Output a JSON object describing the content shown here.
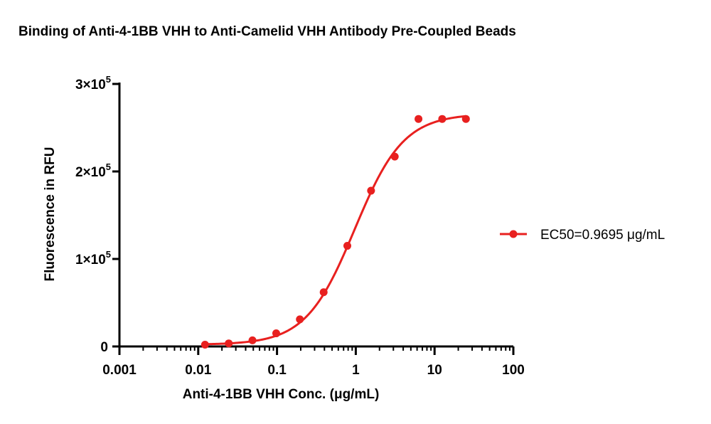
{
  "chart_data": {
    "type": "scatter",
    "title": "Binding of  Anti-4-1BB VHH  to Anti-Camelid VHH Antibody Pre-Coupled Beads",
    "xlabel": "Anti-4-1BB VHH Conc. (μg/mL)",
    "ylabel": "Fluorescence in RFU",
    "x_scale": "log",
    "xlim": [
      0.001,
      100
    ],
    "ylim": [
      0,
      300000
    ],
    "x_ticks": [
      {
        "value": 0.001,
        "label": "0.001"
      },
      {
        "value": 0.01,
        "label": "0.01"
      },
      {
        "value": 0.1,
        "label": "0.1"
      },
      {
        "value": 1,
        "label": "1"
      },
      {
        "value": 10,
        "label": "10"
      },
      {
        "value": 100,
        "label": "100"
      }
    ],
    "y_ticks": [
      {
        "value": 0,
        "label": "0",
        "exp": ""
      },
      {
        "value": 100000,
        "label": "1×10",
        "exp": "5"
      },
      {
        "value": 200000,
        "label": "2×10",
        "exp": "5"
      },
      {
        "value": 300000,
        "label": "3×10",
        "exp": "5"
      }
    ],
    "color": "#e8201f",
    "series": [
      {
        "name": "EC50=0.9695 μg/mL",
        "x": [
          0.0122,
          0.0244,
          0.0488,
          0.0977,
          0.195,
          0.391,
          0.781,
          1.5625,
          3.125,
          6.25,
          12.5,
          25
        ],
        "y": [
          2000,
          3500,
          7000,
          15000,
          31000,
          62000,
          115000,
          178000,
          217000,
          260000,
          260000,
          260000
        ],
        "fit": {
          "bottom": 2000,
          "top": 266000,
          "ec50": 0.9695,
          "hill": 1.4
        }
      }
    ],
    "legend_position": "right"
  }
}
